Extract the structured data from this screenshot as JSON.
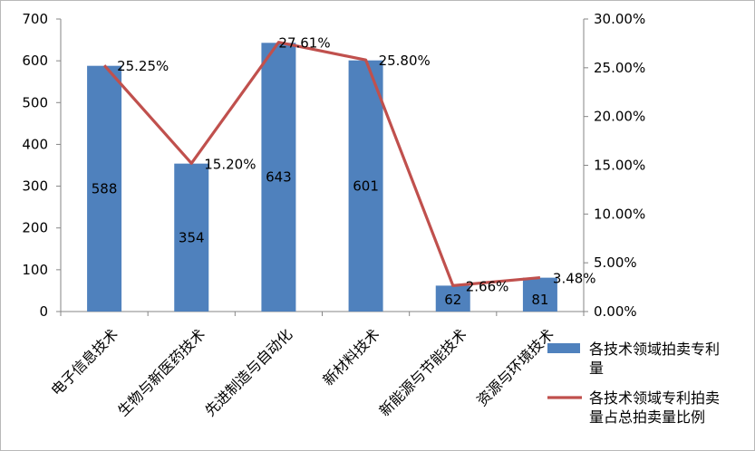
{
  "chart_data": {
    "type": "bar+line",
    "categories": [
      "电子信息技术",
      "生物与新医药技术",
      "先进制造与自动化",
      "新材料技术",
      "新能源与节能技术",
      "资源与环境技术"
    ],
    "series": [
      {
        "name": "各技术领域拍卖专利量",
        "type": "bar",
        "axis": "left",
        "values": [
          588,
          354,
          643,
          601,
          62,
          81
        ],
        "labels": [
          "588",
          "354",
          "643",
          "601",
          "62",
          "81"
        ]
      },
      {
        "name": "各技术领域专利拍卖量占总拍卖量比例",
        "type": "line",
        "axis": "right",
        "values": [
          25.25,
          15.2,
          27.61,
          25.8,
          2.66,
          3.48
        ],
        "labels": [
          "25.25%",
          "15.20%",
          "27.61%",
          "25.80%",
          "2.66%",
          "3.48%"
        ]
      }
    ],
    "y_left": {
      "lim": [
        0,
        700
      ],
      "ticks": [
        "0",
        "100",
        "200",
        "300",
        "400",
        "500",
        "600",
        "700"
      ]
    },
    "y_right": {
      "lim": [
        0,
        30
      ],
      "ticks": [
        "0.00%",
        "5.00%",
        "10.00%",
        "15.00%",
        "20.00%",
        "25.00%",
        "30.00%"
      ]
    },
    "legend": {
      "position": "right",
      "entries": [
        {
          "lines": [
            "各技术领域拍卖专利",
            "量"
          ]
        },
        {
          "lines": [
            "各技术领域专利拍卖",
            "量占总拍卖量比例"
          ]
        }
      ]
    },
    "colors": {
      "bar": "#4f81bd",
      "line": "#c0504d",
      "axis": "#868686"
    },
    "grid": false
  }
}
